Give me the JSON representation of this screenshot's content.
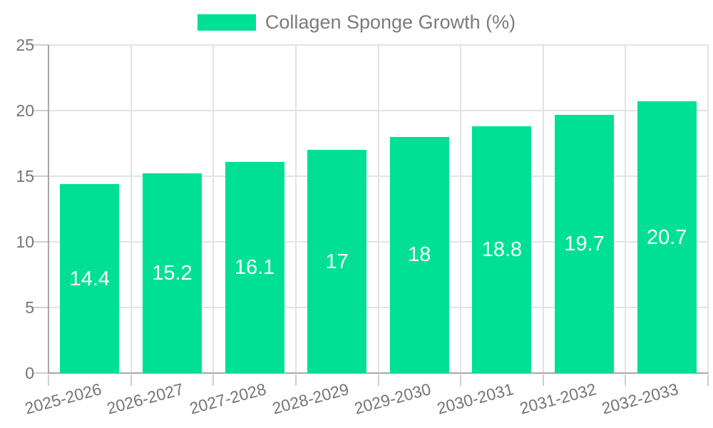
{
  "legend": {
    "label": "Collagen Sponge Growth (%)"
  },
  "chart_data": {
    "type": "bar",
    "title": "",
    "legend_entries": [
      "Collagen Sponge Growth (%)"
    ],
    "legend_position": "top-center",
    "categories": [
      "2025-2026",
      "2026-2027",
      "2027-2028",
      "2028-2029",
      "2029-2030",
      "2030-2031",
      "2031-2032",
      "2032-2033"
    ],
    "series": [
      {
        "name": "Collagen Sponge Growth (%)",
        "values": [
          14.4,
          15.2,
          16.1,
          17,
          18,
          18.8,
          19.7,
          20.7
        ],
        "value_labels": [
          "14.4",
          "15.2",
          "16.1",
          "17",
          "18",
          "18.8",
          "19.7",
          "20.7"
        ]
      }
    ],
    "xlabel": "",
    "ylabel": "",
    "ylim": [
      0,
      25
    ],
    "yticks": [
      0,
      5,
      10,
      15,
      20,
      25
    ],
    "grid": true,
    "x_label_rotation_deg": -15,
    "colors": {
      "bar": "#00e095",
      "gridline": "#e3e3e3",
      "axis_line": "#a8a8a8",
      "tick": "#cfcfcf",
      "axis_text": "#757575",
      "legend_text": "#7b7b7b",
      "value_label_text": "#ffffff",
      "background": "#ffffff"
    }
  }
}
